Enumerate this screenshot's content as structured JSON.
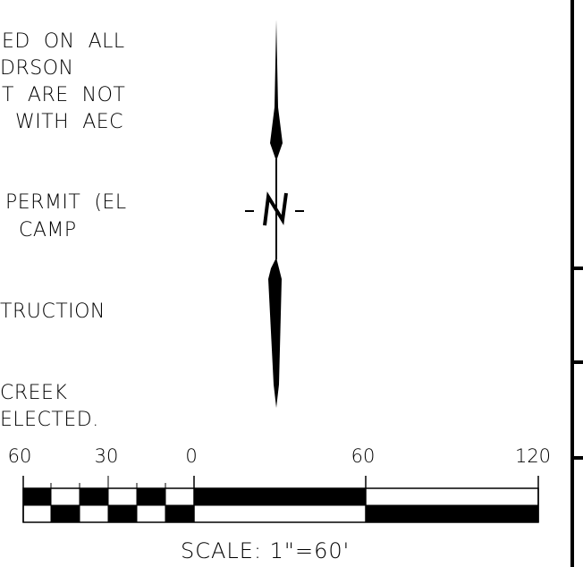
{
  "notes": [
    "ED  ON  ALL",
    "DRSON",
    "T  ARE  NOT",
    "  WITH  AEC",
    "PERMIT  (EL",
    "  CAMP",
    "TRUCTION",
    "CREEK",
    "ELECTED."
  ],
  "north_arrow": {
    "label": "N",
    "dash": "-"
  },
  "scale_bar": {
    "ticks": [
      "60",
      "30",
      "0",
      "60",
      "120"
    ],
    "label": "SCALE:  1\"=60'"
  },
  "colors": {
    "ink": "#000000",
    "paper": "#ffffff"
  }
}
